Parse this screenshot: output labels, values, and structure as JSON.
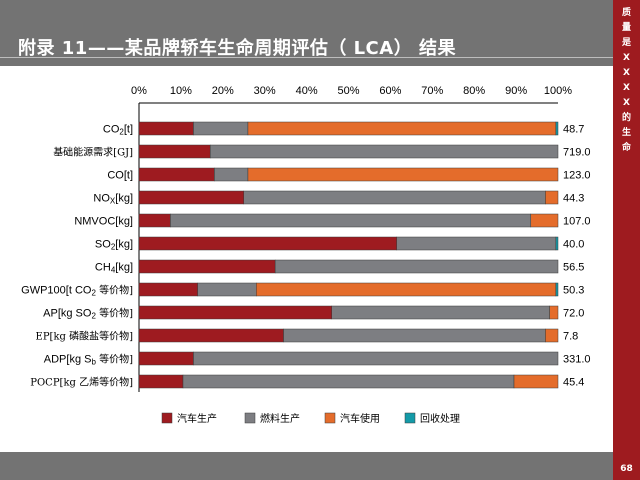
{
  "header": {
    "title": "附录 11——某品牌轿车生命周期评估（ LCA） 结果"
  },
  "side": {
    "chars": [
      "质",
      "量",
      "是",
      "X",
      "X",
      "X",
      "X",
      "的",
      "生",
      "命"
    ]
  },
  "page_number": "68",
  "colors": {
    "header_bg": "#737373",
    "side_bg": "#9e1b1f",
    "series": [
      "#9e1b20",
      "#7d7e82",
      "#e46c2b",
      "#149aa8"
    ]
  },
  "chart_data": {
    "type": "bar",
    "orientation": "horizontal",
    "stacked": "percent",
    "x_ticks": [
      "0%",
      "10%",
      "20%",
      "30%",
      "40%",
      "50%",
      "60%",
      "70%",
      "80%",
      "90%",
      "100%"
    ],
    "xlim": [
      0,
      100
    ],
    "legend_position": "bottom",
    "categories": [
      {
        "base": "CO",
        "sub": "2",
        "rest": "[t]"
      },
      {
        "base": "基础能源需求[GJ]",
        "sub": "",
        "rest": ""
      },
      {
        "base": "CO[t]",
        "sub": "",
        "rest": ""
      },
      {
        "base": "NO",
        "sub": "X",
        "rest": "[kg]"
      },
      {
        "base": "NMVOC[kg]",
        "sub": "",
        "rest": ""
      },
      {
        "base": "SO",
        "sub": "2",
        "rest": "[kg]"
      },
      {
        "base": "CH",
        "sub": "4",
        "rest": "[kg]"
      },
      {
        "base": "GWP100[t CO",
        "sub": "2",
        "rest": " 等价物]"
      },
      {
        "base": "AP[kg SO",
        "sub": "2",
        "rest": " 等价物]"
      },
      {
        "base": "EP[kg 磷酸盐等价物]",
        "sub": "",
        "rest": ""
      },
      {
        "base": "ADP[kg S",
        "sub": "b",
        "rest": " 等价物]"
      },
      {
        "base": "POCP[kg 乙烯等价物]",
        "sub": "",
        "rest": ""
      }
    ],
    "totals": [
      "48.7",
      "719.0",
      "123.0",
      "44.3",
      "107.0",
      "40.0",
      "56.5",
      "50.3",
      "72.0",
      "7.8",
      "331.0",
      "45.4"
    ],
    "series": [
      {
        "name": "汽车生产",
        "values": [
          13.0,
          17.0,
          18.0,
          25.0,
          7.5,
          61.5,
          32.5,
          14.0,
          46.0,
          34.5,
          13.0,
          10.5
        ]
      },
      {
        "name": "燃料生产",
        "values": [
          13.0,
          83.0,
          8.0,
          72.0,
          86.0,
          38.0,
          67.5,
          14.0,
          52.0,
          62.5,
          87.0,
          79.0
        ]
      },
      {
        "name": "汽车使用",
        "values": [
          73.5,
          0.0,
          74.0,
          3.0,
          6.5,
          0.0,
          0.0,
          71.5,
          2.0,
          3.0,
          0.0,
          10.5
        ]
      },
      {
        "name": "回收处理",
        "values": [
          0.5,
          0.0,
          0.0,
          0.0,
          0.0,
          0.5,
          0.0,
          0.5,
          0.0,
          0.0,
          0.0,
          0.0
        ]
      }
    ]
  }
}
